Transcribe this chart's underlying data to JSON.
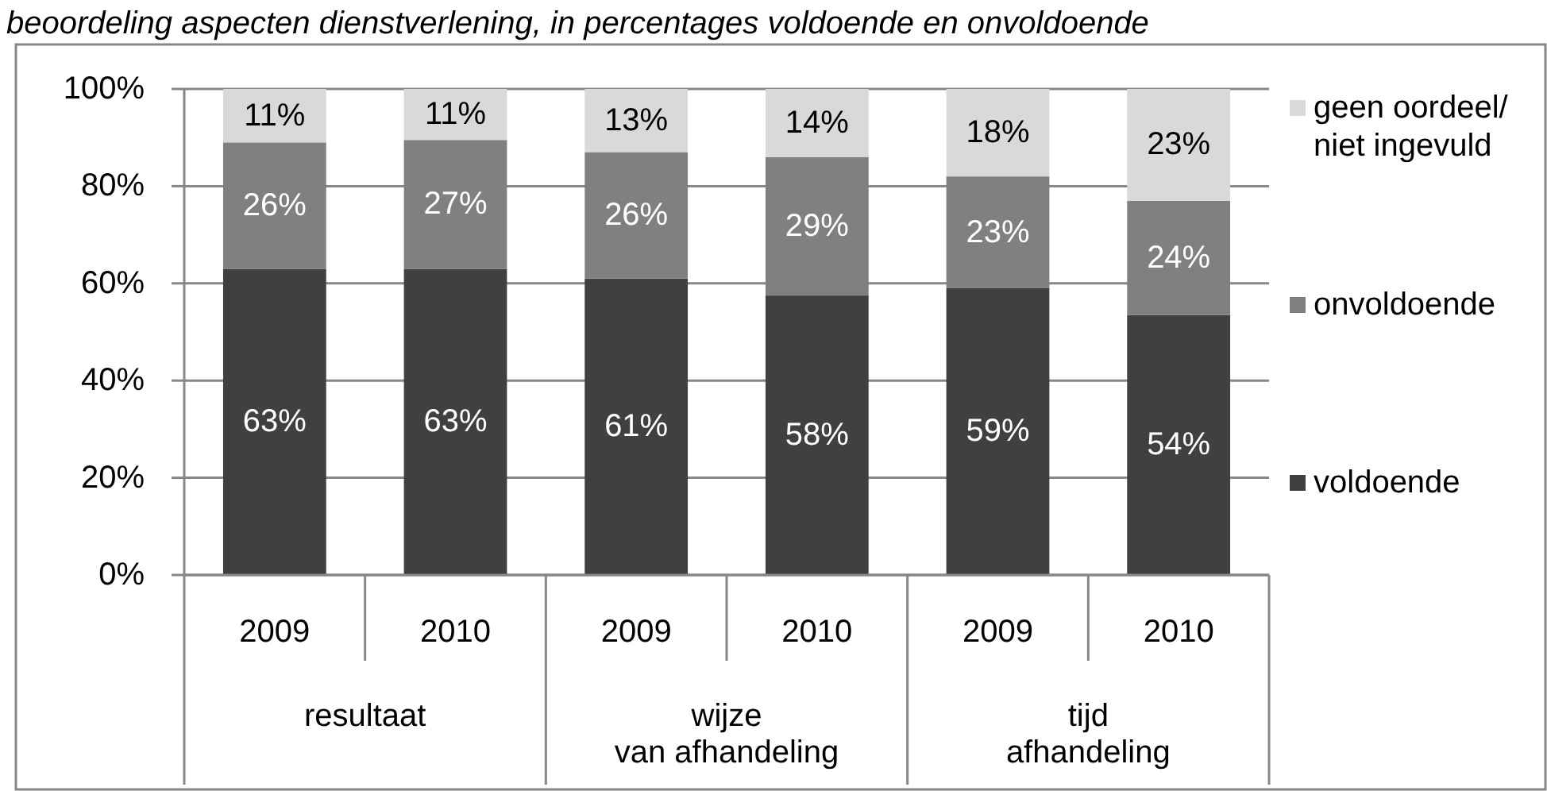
{
  "chart_data": {
    "type": "bar",
    "title": "beoordeling aspecten dienstverlening, in percentages voldoende en onvoldoende",
    "categories": [
      "2009",
      "2010",
      "2009",
      "2010",
      "2009",
      "2010"
    ],
    "annotations": [
      "resultaat",
      "wijze\nvan afhandeling",
      "tijd\nafhandeling"
    ],
    "stacked": true,
    "series": [
      {
        "name": "voldoende",
        "color": "#404040",
        "values": [
          63,
          63,
          61,
          57.5,
          59,
          53.5
        ],
        "value_labels": [
          "63%",
          "63%",
          "61%",
          "58%",
          "59%",
          "54%"
        ]
      },
      {
        "name": "onvoldoende",
        "color": "#808080",
        "values": [
          26,
          26.5,
          26,
          28.5,
          23,
          23.5
        ],
        "value_labels": [
          "26%",
          "27%",
          "26%",
          "29%",
          "23%",
          "24%"
        ]
      },
      {
        "name": "geen oordeel/ niet ingevuld",
        "color": "#d9d9d9",
        "values": [
          11,
          10.5,
          13,
          14,
          18,
          23
        ],
        "value_labels": [
          "11%",
          "11%",
          "13%",
          "14%",
          "18%",
          "23%"
        ]
      }
    ],
    "ylim": [
      0,
      100
    ],
    "yticks": [
      {
        "value": 0,
        "label": "0%"
      },
      {
        "value": 20,
        "label": "20%"
      },
      {
        "value": 40,
        "label": "40%"
      },
      {
        "value": 60,
        "label": "60%"
      },
      {
        "value": 80,
        "label": "80%"
      },
      {
        "value": 100,
        "label": "100%"
      }
    ],
    "grid": "y",
    "legend": "right"
  }
}
